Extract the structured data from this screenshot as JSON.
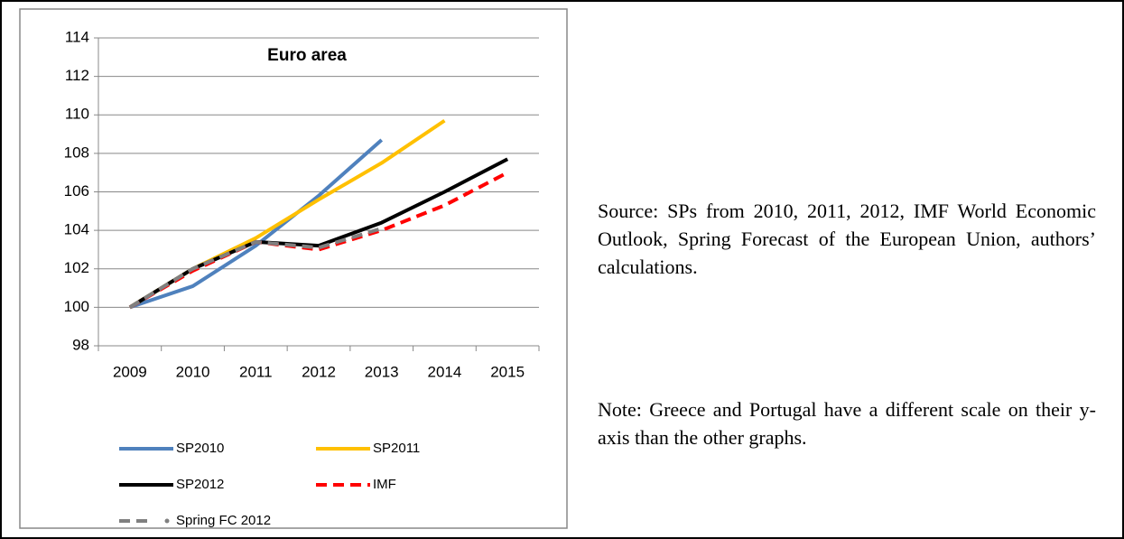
{
  "chart_data": {
    "type": "line",
    "title": "Euro area",
    "categories": [
      "2009",
      "2010",
      "2011",
      "2012",
      "2013",
      "2014",
      "2015"
    ],
    "series": [
      {
        "name": "SP2010",
        "color": "#4f81bd",
        "values": [
          100,
          101.1,
          103.2,
          105.8,
          108.7,
          null,
          null
        ]
      },
      {
        "name": "SP2011",
        "color": "#ffc000",
        "values": [
          100,
          102,
          103.6,
          105.6,
          107.5,
          109.7,
          null
        ]
      },
      {
        "name": "SP2012",
        "color": "#000000",
        "values": [
          100,
          102,
          103.4,
          103.2,
          104.4,
          106,
          107.7
        ]
      },
      {
        "name": "IMF",
        "color": "#ff0000",
        "dashed": true,
        "values": [
          100,
          101.9,
          103.4,
          103,
          104,
          105.3,
          107
        ]
      },
      {
        "name": "Spring FC 2012",
        "color": "#808080",
        "dashed": true,
        "values": [
          100,
          102,
          103.4,
          103.1,
          104.1,
          null,
          null
        ]
      }
    ],
    "ylim": [
      98,
      114
    ],
    "yticks": [
      98,
      100,
      102,
      104,
      106,
      108,
      110,
      112,
      114
    ],
    "grid": true
  },
  "text": {
    "source": "Source: SPs from 2010, 2011, 2012, IMF World Economic Outlook, Spring Forecast of the European Union, authors’ calculations.",
    "note": "Note: Greece and Portugal have a different scale on their y-axis than the other graphs."
  }
}
